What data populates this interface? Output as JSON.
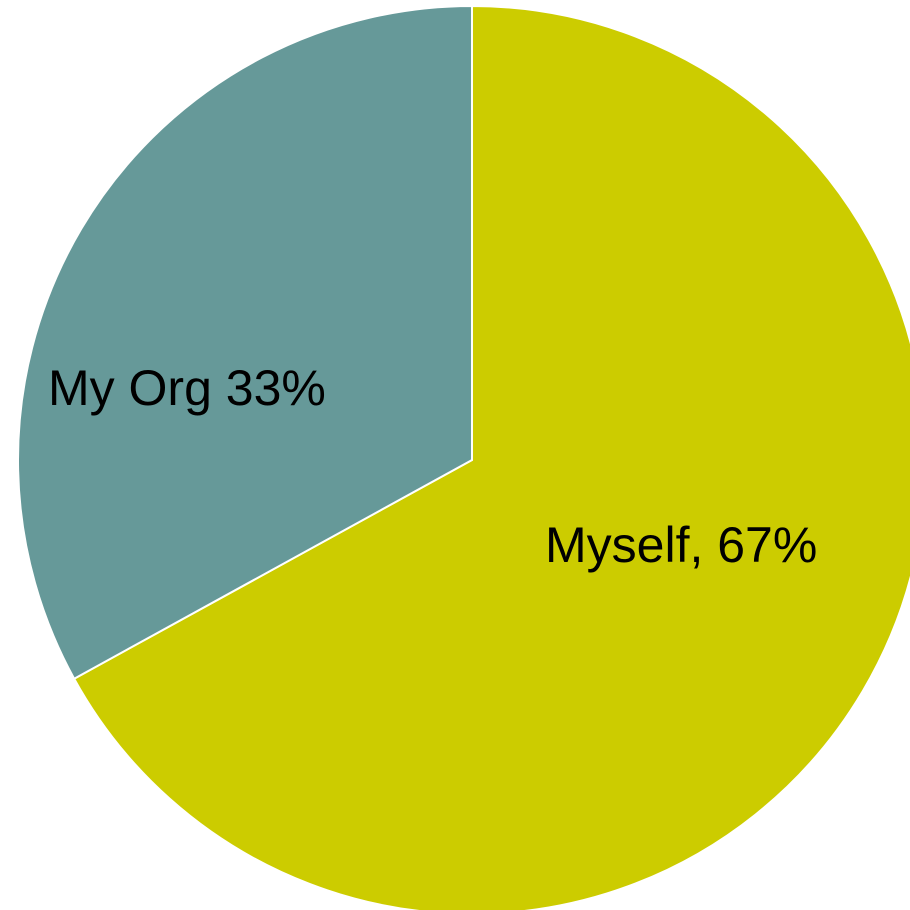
{
  "chart_data": {
    "type": "pie",
    "slices": [
      {
        "label": "Myself, 67%",
        "value": 67,
        "color": "#cccc00"
      },
      {
        "label": "My Org 33%",
        "value": 33,
        "color": "#669999"
      }
    ],
    "start": "12 o'clock",
    "direction": "clockwise",
    "slice_border_color": "#ffffff",
    "legend": "none"
  }
}
